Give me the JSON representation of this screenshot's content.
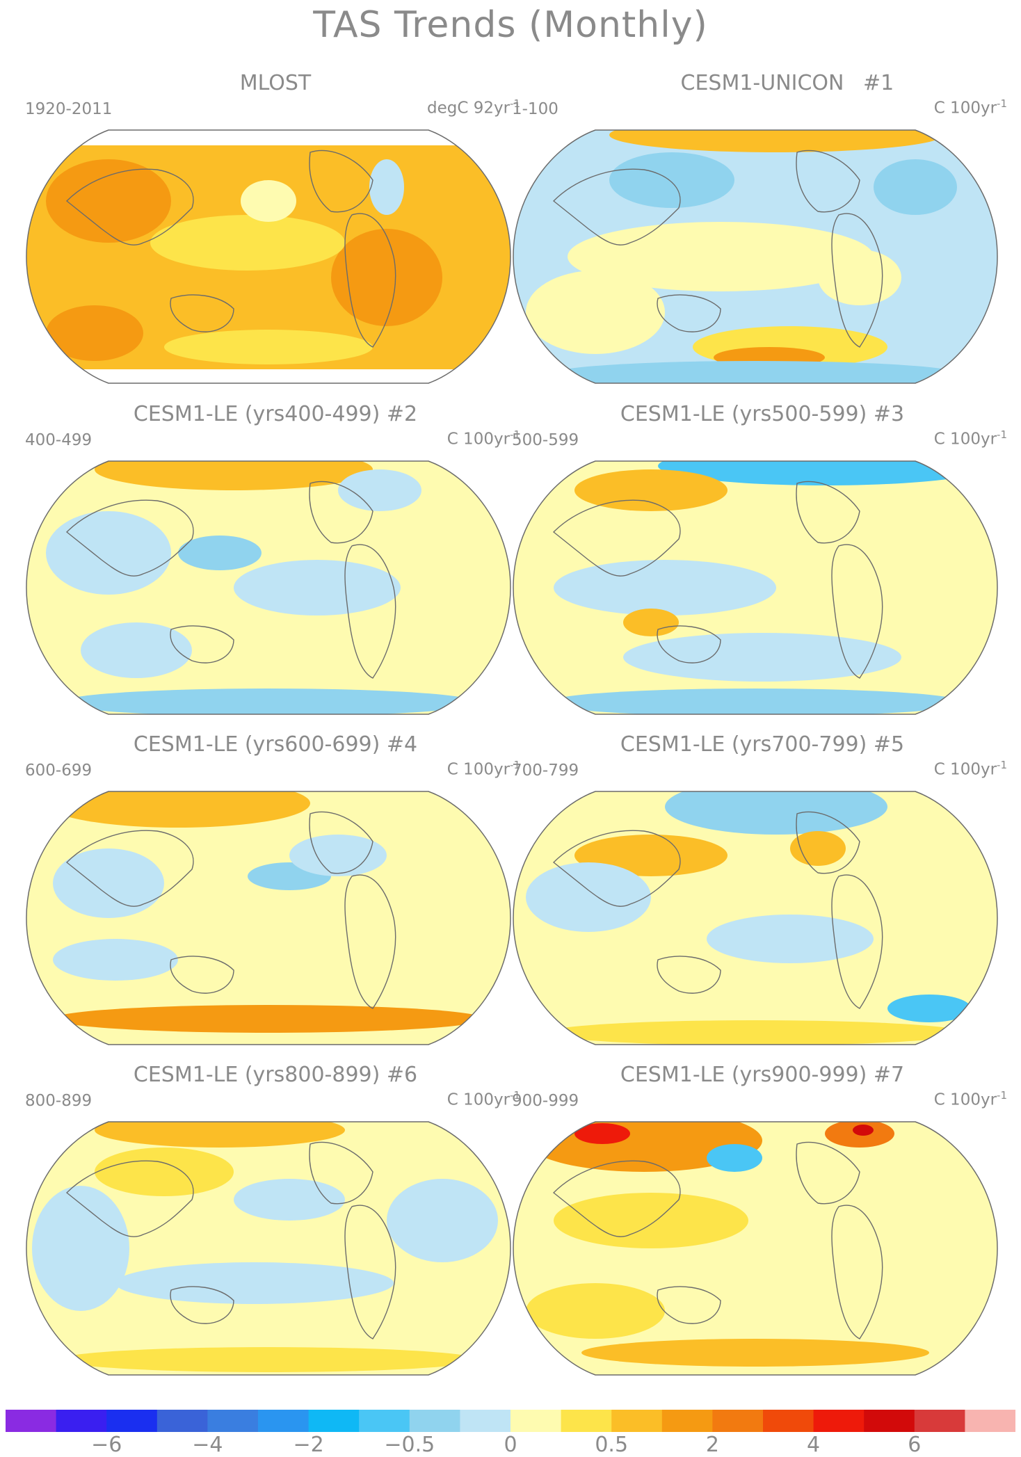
{
  "title": "TAS Trends (Monthly)",
  "panels": [
    {
      "title": "MLOST",
      "number": "",
      "period": "1920-2011",
      "units": "degC 92yr",
      "units_exp": "-1"
    },
    {
      "title": "CESM1-UNICON",
      "number": "#1",
      "period": "1-100",
      "units": "C 100yr",
      "units_exp": "-1"
    },
    {
      "title": "CESM1-LE (yrs400-499) #2",
      "number": "",
      "period": "400-499",
      "units": "C 100yr",
      "units_exp": "-1"
    },
    {
      "title": "CESM1-LE (yrs500-599) #3",
      "number": "",
      "period": "500-599",
      "units": "C 100yr",
      "units_exp": "-1"
    },
    {
      "title": "CESM1-LE (yrs600-699) #4",
      "number": "",
      "period": "600-699",
      "units": "C 100yr",
      "units_exp": "-1"
    },
    {
      "title": "CESM1-LE (yrs700-799) #5",
      "number": "",
      "period": "700-799",
      "units": "C 100yr",
      "units_exp": "-1"
    },
    {
      "title": "CESM1-LE (yrs800-899) #6",
      "number": "",
      "period": "800-899",
      "units": "C 100yr",
      "units_exp": "-1"
    },
    {
      "title": "CESM1-LE (yrs900-999) #7",
      "number": "",
      "period": "900-999",
      "units": "C 100yr",
      "units_exp": "-1"
    }
  ],
  "colorbar": {
    "colors": [
      "#8a2be2",
      "#3a1ff0",
      "#1a2ff0",
      "#3a63d8",
      "#3a7ee0",
      "#2a95f0",
      "#0fb8f5",
      "#4ac6f5",
      "#90d3ee",
      "#bfe4f5",
      "#fefbb0",
      "#fde44a",
      "#fbbe27",
      "#f59a12",
      "#f27a10",
      "#f04a0a",
      "#ee1a0a",
      "#d20a0a",
      "#d83a3a",
      "#f8b4b0"
    ],
    "tick_labels": [
      "-6",
      "-4",
      "-2",
      "-0.5",
      "0",
      "0.5",
      "2",
      "4",
      "6"
    ]
  },
  "colors": {
    "text": "#8a8a8a",
    "coast": "#6b6b6b"
  }
}
